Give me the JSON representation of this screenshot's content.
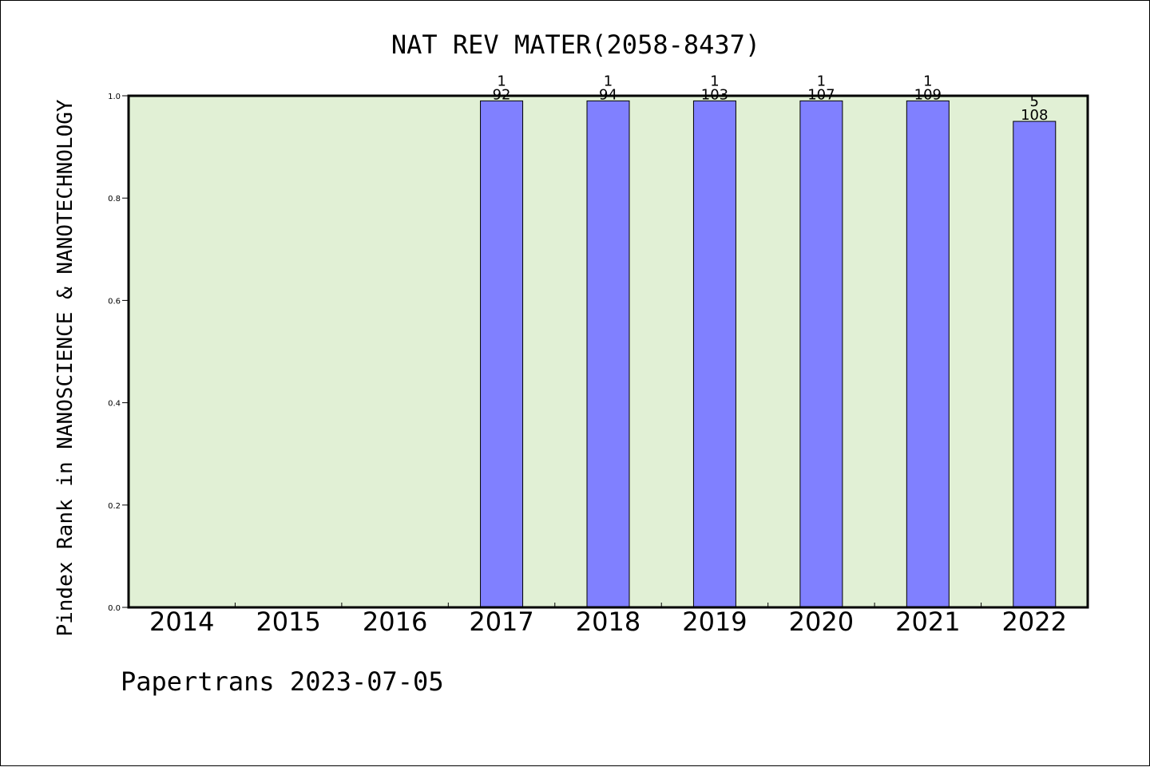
{
  "chart_data": {
    "type": "bar",
    "title": "NAT REV MATER(2058-8437)",
    "xlabel": "",
    "ylabel": "Pindex Rank in NANOSCIENCE & NANOTECHNOLOGY",
    "footer": "Papertrans 2023-07-05",
    "categories": [
      "2014",
      "2015",
      "2016",
      "2017",
      "2018",
      "2019",
      "2020",
      "2021",
      "2022"
    ],
    "values": [
      null,
      null,
      null,
      0.99,
      0.99,
      0.99,
      0.99,
      0.99,
      0.95
    ],
    "rank_labels": [
      "",
      "",
      "",
      "1",
      "1",
      "1",
      "1",
      "1",
      "5"
    ],
    "total_labels": [
      "",
      "",
      "",
      "92",
      "94",
      "103",
      "107",
      "109",
      "108"
    ],
    "ylim": [
      0,
      1
    ],
    "yticks": [
      "0.0",
      "0.2",
      "0.4",
      "0.6",
      "0.8",
      "1.0"
    ],
    "grid": false,
    "colors": {
      "bar": "#8080ff",
      "plot_bg": "#e1f0d5",
      "axis": "#000000"
    }
  }
}
